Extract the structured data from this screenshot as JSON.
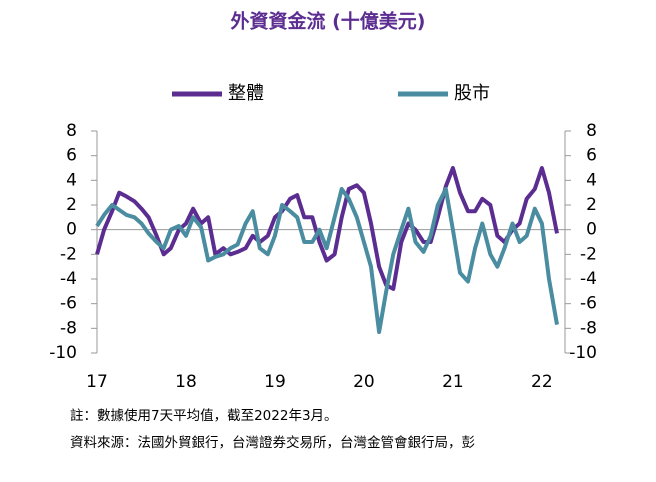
{
  "chart_data": {
    "type": "line",
    "title": "外資資金流 (十億美元)",
    "x": [
      17.0,
      17.08,
      17.17,
      17.25,
      17.33,
      17.42,
      17.5,
      17.58,
      17.67,
      17.75,
      17.83,
      17.92,
      18.0,
      18.08,
      18.17,
      18.25,
      18.33,
      18.42,
      18.5,
      18.58,
      18.67,
      18.75,
      18.83,
      18.92,
      19.0,
      19.08,
      19.17,
      19.25,
      19.33,
      19.42,
      19.5,
      19.58,
      19.67,
      19.75,
      19.83,
      19.92,
      20.0,
      20.08,
      20.17,
      20.25,
      20.33,
      20.42,
      20.5,
      20.58,
      20.67,
      20.75,
      20.83,
      20.92,
      21.0,
      21.08,
      21.17,
      21.25,
      21.33,
      21.42,
      21.5,
      21.58,
      21.67,
      21.75,
      21.83,
      21.92,
      22.0,
      22.08,
      22.17
    ],
    "series": [
      {
        "name": "整體",
        "color": "#5c2d91",
        "values": [
          -2,
          0,
          1.5,
          3,
          2.7,
          2.3,
          1.7,
          1,
          -0.5,
          -2,
          -1.5,
          0,
          0.5,
          1.7,
          0.5,
          1,
          -2,
          -1.5,
          -2,
          -1.8,
          -1.5,
          -0.5,
          -1,
          -0.5,
          1,
          1.5,
          2.5,
          2.8,
          1,
          1,
          -1,
          -2.5,
          -2,
          1,
          3.3,
          3.6,
          3,
          0.5,
          -3,
          -4.5,
          -4.8,
          -1,
          0.5,
          0,
          -1,
          -1,
          1,
          3.5,
          5,
          3,
          1.5,
          1.5,
          2.5,
          2,
          -0.5,
          -1,
          0,
          0.5,
          2.5,
          3.3,
          5,
          3,
          -0.3
        ]
      },
      {
        "name": "股市",
        "color": "#4a8ca0",
        "values": [
          0.3,
          1.2,
          2,
          1.6,
          1.2,
          1,
          0.5,
          -0.3,
          -1,
          -1.5,
          0,
          0.3,
          -0.5,
          1,
          0.2,
          -2.5,
          -2.2,
          -2,
          -1.5,
          -1.2,
          0.5,
          1.5,
          -1.5,
          -2,
          -0.5,
          2,
          1.5,
          1,
          -1,
          -1,
          0,
          -1.5,
          1,
          3.3,
          2.5,
          1,
          -1,
          -3,
          -8.3,
          -5,
          -2,
          0,
          1.7,
          -1,
          -1.8,
          -0.5,
          2,
          3.3,
          0,
          -3.5,
          -4.2,
          -1.5,
          0.5,
          -2,
          -3,
          -1.5,
          0.5,
          -1,
          -0.5,
          1.7,
          0.5,
          -4,
          -7.7
        ]
      }
    ],
    "xlim": [
      17,
      22.17
    ],
    "xticks": [
      17,
      18,
      19,
      20,
      21,
      22
    ],
    "ylim": [
      -10,
      8
    ],
    "yticks": [
      -10,
      -8,
      -6,
      -4,
      -2,
      0,
      2,
      4,
      6,
      8
    ],
    "y2lim": [
      -10,
      8
    ],
    "y2ticks": [
      -10,
      -8,
      -6,
      -4,
      -2,
      0,
      2,
      4,
      6,
      8
    ],
    "notes": [
      "註：數據使用7天平均值，截至2022年3月。",
      "資料來源：法國外貿銀行，台灣證券交易所，台灣金管會銀行局，彭"
    ]
  }
}
